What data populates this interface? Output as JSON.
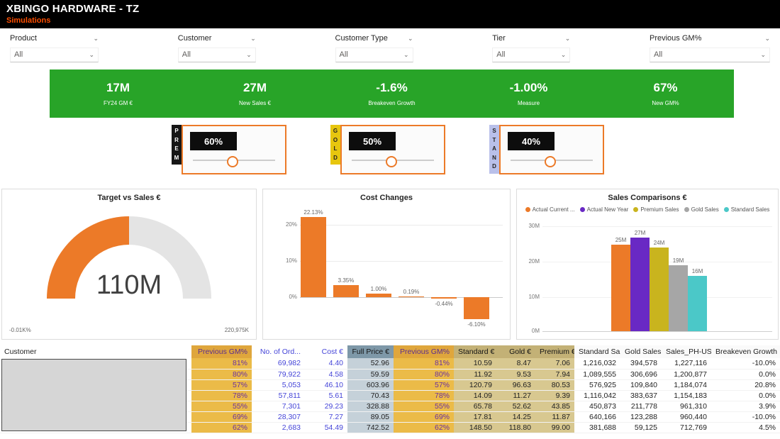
{
  "header": {
    "title": "XBINGO HARDWARE - TZ",
    "tab": "Simulations"
  },
  "colors": {
    "accent": "#EC7A28",
    "green": "#28A428",
    "tab": "#FF4E00"
  },
  "filters": [
    {
      "label": "Product",
      "value": "All"
    },
    {
      "label": "Customer",
      "value": "All"
    },
    {
      "label": "Customer Type",
      "value": "All"
    },
    {
      "label": "Tier",
      "value": "All"
    },
    {
      "label": "Previous GM%",
      "value": "All"
    }
  ],
  "kpis": [
    {
      "value": "17M",
      "label": "FY24 GM €"
    },
    {
      "value": "27M",
      "label": "New Sales €"
    },
    {
      "value": "-1.6%",
      "label": "Breakeven Growth"
    },
    {
      "value": "-1.00%",
      "label": "Measure"
    },
    {
      "value": "67%",
      "label": "New GM%"
    }
  ],
  "tier_sliders": [
    {
      "tier": "PREM",
      "value": "60%",
      "strip_color": "#161616",
      "strip_text": "#FFFFFF"
    },
    {
      "tier": "GOLD",
      "value": "50%",
      "strip_color": "#E7C60E",
      "strip_text": "#222222"
    },
    {
      "tier": "STAND",
      "value": "40%",
      "strip_color": "#B9C0EA",
      "strip_text": "#222222"
    }
  ],
  "chart_data": [
    {
      "type": "gauge",
      "title": "Target vs Sales €",
      "value": "110M",
      "min_label": "-0.01K%",
      "max_label": "220,975K",
      "fill_fraction": 0.5,
      "fill_color": "#EC7A28",
      "track_color": "#E4E4E4"
    },
    {
      "type": "bar",
      "title": "Cost Changes",
      "bar_color": "#EC7A28",
      "yticks": [
        "20%",
        "10%",
        "0%"
      ],
      "values": [
        22.13,
        3.35,
        1.0,
        0.19,
        -0.44,
        -6.1
      ],
      "labels": [
        "22.13%",
        "3.35%",
        "1.00%",
        "0.19%",
        "-0.44%",
        "-6.10%"
      ]
    },
    {
      "type": "bar",
      "title": "Sales Comparisons €",
      "yticks": [
        "30M",
        "20M",
        "10M",
        "0M"
      ],
      "values": [
        25,
        27,
        24,
        19,
        16
      ],
      "labels": [
        "25M",
        "27M",
        "24M",
        "19M",
        "16M"
      ],
      "legend": [
        {
          "label": "Actual Current ...",
          "color": "#EC7A28"
        },
        {
          "label": "Actual New Year",
          "color": "#6929C4"
        },
        {
          "label": "Premium Sales",
          "color": "#C9B41E"
        },
        {
          "label": "Gold Sales",
          "color": "#A6A6A6"
        },
        {
          "label": "Standard Sales",
          "color": "#4BC8C8"
        }
      ]
    }
  ],
  "table": {
    "columns": [
      {
        "label": "Customer"
      },
      {
        "label": "Previous GM%"
      },
      {
        "label": "No. of Ord..."
      },
      {
        "label": "Cost €"
      },
      {
        "label": "Full Price €"
      },
      {
        "label": "Previous GM%"
      },
      {
        "label": "Standard €"
      },
      {
        "label": "Gold €"
      },
      {
        "label": "Premium €"
      },
      {
        "label": "Standard Sales"
      },
      {
        "label": "Gold Sales"
      },
      {
        "label": "Sales_PH-USA",
        "sort_indicator": "▾"
      },
      {
        "label": "Breakeven Growth"
      }
    ],
    "rows": [
      [
        "",
        "81%",
        "69,982",
        "4.40",
        "52.96",
        "81%",
        "10.59",
        "8.47",
        "7.06",
        "1,216,032",
        "394,578",
        "1,227,116",
        "-10.0%"
      ],
      [
        "",
        "80%",
        "79,922",
        "4.58",
        "59.59",
        "80%",
        "11.92",
        "9.53",
        "7.94",
        "1,089,555",
        "306,696",
        "1,200,877",
        "0.0%"
      ],
      [
        "",
        "57%",
        "5,053",
        "46.10",
        "603.96",
        "57%",
        "120.79",
        "96.63",
        "80.53",
        "576,925",
        "109,840",
        "1,184,074",
        "20.8%"
      ],
      [
        "",
        "78%",
        "57,811",
        "5.61",
        "70.43",
        "78%",
        "14.09",
        "11.27",
        "9.39",
        "1,116,042",
        "383,637",
        "1,154,183",
        "0.0%"
      ],
      [
        "",
        "55%",
        "7,301",
        "29.23",
        "328.88",
        "55%",
        "65.78",
        "52.62",
        "43.85",
        "450,873",
        "211,778",
        "961,310",
        "3.9%"
      ],
      [
        "",
        "69%",
        "28,307",
        "7.27",
        "89.05",
        "69%",
        "17.81",
        "14.25",
        "11.87",
        "640,166",
        "123,288",
        "960,440",
        "-10.0%"
      ],
      [
        "",
        "62%",
        "2,683",
        "54.49",
        "742.52",
        "62%",
        "148.50",
        "118.80",
        "99.00",
        "381,688",
        "59,125",
        "712,769",
        "4.5%"
      ]
    ]
  }
}
